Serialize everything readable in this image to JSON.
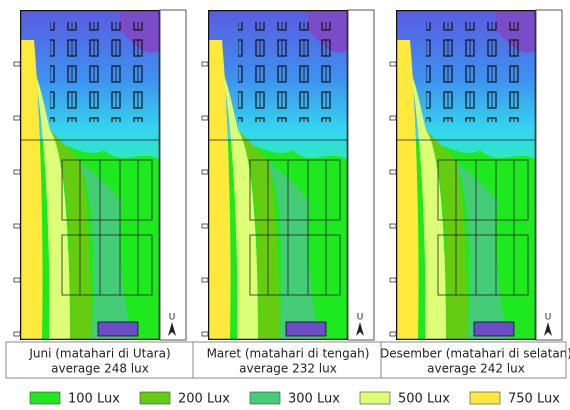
{
  "panels": [
    {
      "caption": "Juni (matahari di Utara)",
      "average": "average 248 lux",
      "north": "U"
    },
    {
      "caption": "Maret (matahari di tengah)",
      "average": "average 232 lux",
      "north": "U"
    },
    {
      "caption": "Desember (matahari di selatan)",
      "average": "average 242 lux",
      "north": "U"
    }
  ],
  "legend": [
    {
      "label": "100 Lux",
      "color": "#1ee81e"
    },
    {
      "label": "200 Lux",
      "color": "#66cc11"
    },
    {
      "label": "300 Lux",
      "color": "#44cc77"
    },
    {
      "label": "500 Lux",
      "color": "#ddff77"
    },
    {
      "label": "750 Lux",
      "color": "#ffe93d"
    }
  ]
}
